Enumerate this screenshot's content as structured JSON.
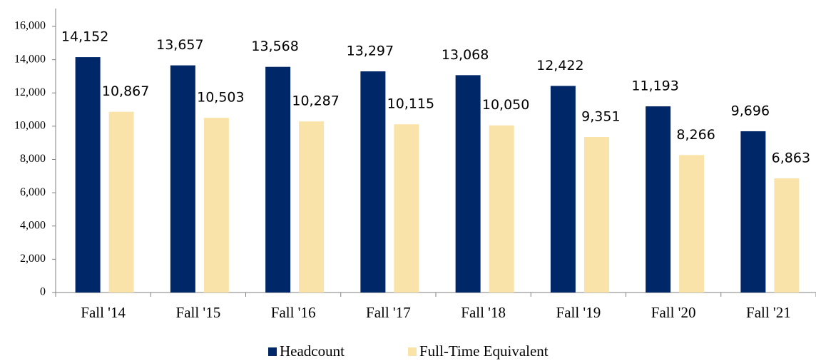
{
  "chart_data": {
    "type": "bar",
    "categories": [
      "Fall '14",
      "Fall '15",
      "Fall '16",
      "Fall '17",
      "Fall '18",
      "Fall '19",
      "Fall '20",
      "Fall '21"
    ],
    "series": [
      {
        "name": "Headcount",
        "color": "#002868",
        "values": [
          14152,
          13657,
          13568,
          13297,
          13068,
          12422,
          11193,
          9696
        ],
        "value_labels": [
          "14,152",
          "13,657",
          "13,568",
          "13,297",
          "13,068",
          "12,422",
          "11,193",
          "9,696"
        ]
      },
      {
        "name": "Full-Time Equivalent",
        "color": "#fae3a8",
        "values": [
          10867,
          10503,
          10287,
          10115,
          10050,
          9351,
          8266,
          6863
        ],
        "value_labels": [
          "10,867",
          "10,503",
          "10,287",
          "10,115",
          "10,050",
          "9,351",
          "8,266",
          "6,863"
        ]
      }
    ],
    "ylim": [
      0,
      16000
    ],
    "yticks": [
      0,
      {
        "value": 2000,
        "label": "2,000"
      },
      {
        "value": 4000,
        "label": "4,000"
      },
      {
        "value": 6000,
        "label": "6,000"
      },
      {
        "value": 8000,
        "label": "8,000"
      },
      {
        "value": 10000,
        "label": "10,000"
      },
      {
        "value": 12000,
        "label": "12,000"
      },
      {
        "value": 14000,
        "label": "14,000"
      },
      {
        "value": 16000,
        "label": "16,000"
      }
    ],
    "grid": false,
    "legend": "bottom"
  }
}
